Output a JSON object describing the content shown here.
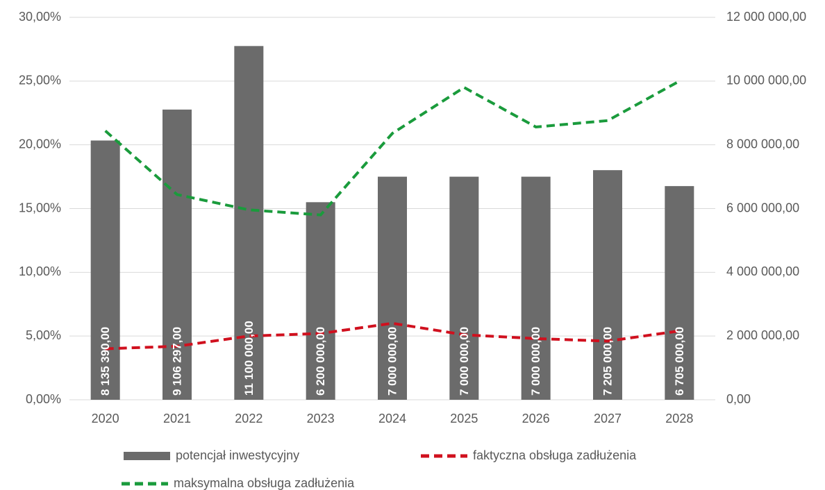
{
  "chart_data": {
    "type": "combo",
    "categories": [
      "2020",
      "2021",
      "2022",
      "2023",
      "2024",
      "2025",
      "2026",
      "2027",
      "2028"
    ],
    "series": [
      {
        "name": "potencjał inwestycyjny",
        "type": "bar",
        "axis": "y2",
        "color": "#6b6b6b",
        "values": [
          8135390,
          9106297,
          11100000,
          6200000,
          7000000,
          7000000,
          7000000,
          7205000,
          6705000
        ],
        "value_labels": [
          "8 135 390,00",
          "9 106 297,00",
          "11 100 000,00",
          "6 200 000,00",
          "7 000 000,00",
          "7 000 000,00",
          "7 000 000,00",
          "7 205 000,00",
          "6 705 000,00"
        ]
      },
      {
        "name": "faktyczna obsługa zadłużenia",
        "type": "line",
        "axis": "y",
        "color": "#d0101e",
        "values": [
          4.0,
          4.2,
          5.0,
          5.2,
          6.0,
          5.1,
          4.8,
          4.6,
          5.4
        ]
      },
      {
        "name": "maksymalna obsługa zadłużenia",
        "type": "line",
        "axis": "y",
        "color": "#1a9b3c",
        "values": [
          21.1,
          16.1,
          14.9,
          14.5,
          20.9,
          24.5,
          21.4,
          21.9,
          25.0
        ]
      }
    ],
    "ylim": [
      0,
      30
    ],
    "yticks": [
      {
        "value": 0,
        "label": "0,00%"
      },
      {
        "value": 5,
        "label": "5,00%"
      },
      {
        "value": 10,
        "label": "10,00%"
      },
      {
        "value": 15,
        "label": "15,00%"
      },
      {
        "value": 20,
        "label": "20,00%"
      },
      {
        "value": 25,
        "label": "25,00%"
      },
      {
        "value": 30,
        "label": "30,00%"
      }
    ],
    "y2lim": [
      0,
      12000000
    ],
    "y2ticks": [
      {
        "value": 0,
        "label": "0,00"
      },
      {
        "value": 2000000,
        "label": "2 000 000,00"
      },
      {
        "value": 4000000,
        "label": "4 000 000,00"
      },
      {
        "value": 6000000,
        "label": "6 000 000,00"
      },
      {
        "value": 8000000,
        "label": "8 000 000,00"
      },
      {
        "value": 10000000,
        "label": "10 000 000,00"
      },
      {
        "value": 12000000,
        "label": "12 000 000,00"
      }
    ],
    "grid": true
  }
}
